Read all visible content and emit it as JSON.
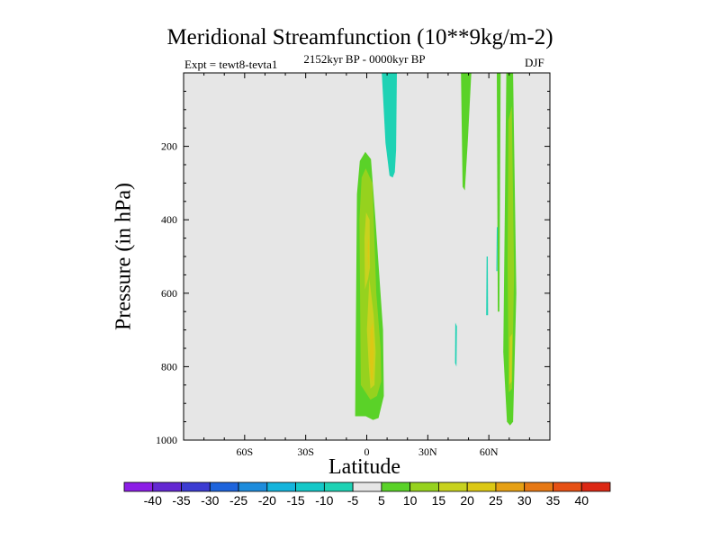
{
  "chart_data": {
    "type": "heatmap",
    "title": "Meridional Streamfunction (10**9kg/m-2)",
    "experiment": "Expt = tewt8-tevta1",
    "period": "2152kyr BP - 0000kyr BP",
    "season": "DJF",
    "xlabel": "Latitude",
    "ylabel": "Pressure (in hPa)",
    "xlim": [
      -90,
      90
    ],
    "ylim": [
      0,
      1000
    ],
    "y_inverted": true,
    "x_ticks": [
      {
        "value": -60,
        "label": "60S"
      },
      {
        "value": -30,
        "label": "30S"
      },
      {
        "value": 0,
        "label": "0"
      },
      {
        "value": 30,
        "label": "30N"
      },
      {
        "value": 60,
        "label": "60N"
      }
    ],
    "y_ticks": [
      {
        "value": 200,
        "label": "200"
      },
      {
        "value": 400,
        "label": "400"
      },
      {
        "value": 600,
        "label": "600"
      },
      {
        "value": 800,
        "label": "800"
      },
      {
        "value": 1000,
        "label": "1000"
      }
    ],
    "background_color": "#e6e6e6",
    "colorbar": {
      "labels": [
        "-40",
        "-35",
        "-30",
        "-25",
        "-20",
        "-15",
        "-10",
        "-5",
        "5",
        "10",
        "15",
        "20",
        "25",
        "30",
        "35",
        "40"
      ],
      "colors": [
        "#8c1ee6",
        "#6428d2",
        "#3c3cd2",
        "#1e64dc",
        "#1e8cdc",
        "#14b4dc",
        "#14c8c8",
        "#1ed2b4",
        "#e6e6e6",
        "#5ad228",
        "#96d21e",
        "#c8d21e",
        "#dcc814",
        "#e6a014",
        "#e67814",
        "#e65014",
        "#dc2814"
      ]
    },
    "regions": [
      {
        "name": "equatorial-cell-outer",
        "color": "#5ad228",
        "points": [
          [
            -5.7,
            935
          ],
          [
            -4.8,
            330
          ],
          [
            -3.4,
            240
          ],
          [
            -0.7,
            215
          ],
          [
            2.1,
            235
          ],
          [
            4.3,
            400
          ],
          [
            8,
            700
          ],
          [
            8.4,
            880
          ],
          [
            5.8,
            940
          ],
          [
            3.1,
            945
          ],
          [
            -0.5,
            935
          ]
        ]
      },
      {
        "name": "equatorial-cell-middle",
        "color": "#96d21e",
        "points": [
          [
            -2.9,
            850
          ],
          [
            -3.6,
            400
          ],
          [
            -2.5,
            285
          ],
          [
            -0.5,
            260
          ],
          [
            2.8,
            300
          ],
          [
            4.7,
            600
          ],
          [
            6.8,
            750
          ],
          [
            7.1,
            840
          ],
          [
            5,
            880
          ],
          [
            1.8,
            890
          ]
        ]
      },
      {
        "name": "equatorial-cell-inner-upper",
        "color": "#c8d21e",
        "points": [
          [
            -0.9,
            590
          ],
          [
            -1.1,
            450
          ],
          [
            -0.3,
            380
          ],
          [
            1.4,
            400
          ],
          [
            1.6,
            530
          ],
          [
            0.7,
            560
          ]
        ]
      },
      {
        "name": "equatorial-cell-inner-lower",
        "color": "#c8d21e",
        "points": [
          [
            1,
            800
          ],
          [
            0.1,
            700
          ],
          [
            1.3,
            560
          ],
          [
            3.4,
            660
          ],
          [
            4.4,
            760
          ],
          [
            3.8,
            850
          ],
          [
            1.8,
            860
          ]
        ]
      },
      {
        "name": "equatorial-cell-core-upper",
        "color": "#dcc814",
        "points": [
          [
            0.5,
            500
          ],
          [
            0.7,
            440
          ],
          [
            1.1,
            470
          ],
          [
            0.9,
            540
          ]
        ]
      },
      {
        "name": "equatorial-cell-core-lower",
        "color": "#dcc814",
        "points": [
          [
            1.5,
            780
          ],
          [
            1.8,
            700
          ],
          [
            3,
            680
          ],
          [
            3.5,
            760
          ],
          [
            2.9,
            840
          ],
          [
            2,
            830
          ]
        ]
      },
      {
        "name": "north-cell-outer",
        "color": "#5ad228",
        "points": [
          [
            68.9,
            950
          ],
          [
            67.1,
            760
          ],
          [
            68.6,
            0
          ],
          [
            71.9,
            0
          ],
          [
            73.5,
            600
          ],
          [
            71.9,
            950
          ],
          [
            70.4,
            960
          ]
        ]
      },
      {
        "name": "north-cell-middle",
        "color": "#96d21e",
        "points": [
          [
            69.8,
            870
          ],
          [
            69.2,
            520
          ],
          [
            69.6,
            130
          ],
          [
            71.3,
            90
          ],
          [
            72.4,
            550
          ],
          [
            71.4,
            860
          ]
        ]
      },
      {
        "name": "north-cell-core",
        "color": "#c8d21e",
        "points": [
          [
            70,
            850
          ],
          [
            70.3,
            720
          ],
          [
            71.5,
            710
          ],
          [
            71.2,
            840
          ]
        ]
      },
      {
        "name": "upper-north-band",
        "color": "#5ad228",
        "points": [
          [
            47.1,
            310
          ],
          [
            46.3,
            0
          ],
          [
            51.4,
            0
          ],
          [
            49.6,
            190
          ],
          [
            48.2,
            320
          ]
        ]
      },
      {
        "name": "narrow-band-mid",
        "color": "#5ad228",
        "points": [
          [
            64.4,
            650
          ],
          [
            63.9,
            0
          ],
          [
            65.8,
            0
          ],
          [
            65.2,
            650
          ]
        ]
      },
      {
        "name": "upper-negative-band",
        "color": "#1ed2b4",
        "points": [
          [
            11.2,
            280
          ],
          [
            9.2,
            190
          ],
          [
            7.4,
            0
          ],
          [
            14.8,
            0
          ],
          [
            14.4,
            210
          ],
          [
            13.8,
            270
          ],
          [
            12.8,
            285
          ]
        ]
      },
      {
        "name": "negative-sliver-a",
        "color": "#1ed2b4",
        "points": [
          [
            43.4,
            790
          ],
          [
            43.5,
            680
          ],
          [
            44.3,
            690
          ],
          [
            44.1,
            800
          ]
        ]
      },
      {
        "name": "negative-sliver-b",
        "color": "#1ed2b4",
        "points": [
          [
            58.7,
            660
          ],
          [
            58.9,
            500
          ],
          [
            59.5,
            500
          ],
          [
            59.6,
            660
          ]
        ]
      },
      {
        "name": "negative-sliver-c",
        "color": "#1ed2b4",
        "points": [
          [
            63.7,
            540
          ],
          [
            63.9,
            420
          ],
          [
            64.4,
            420
          ],
          [
            64.2,
            540
          ]
        ]
      }
    ]
  }
}
